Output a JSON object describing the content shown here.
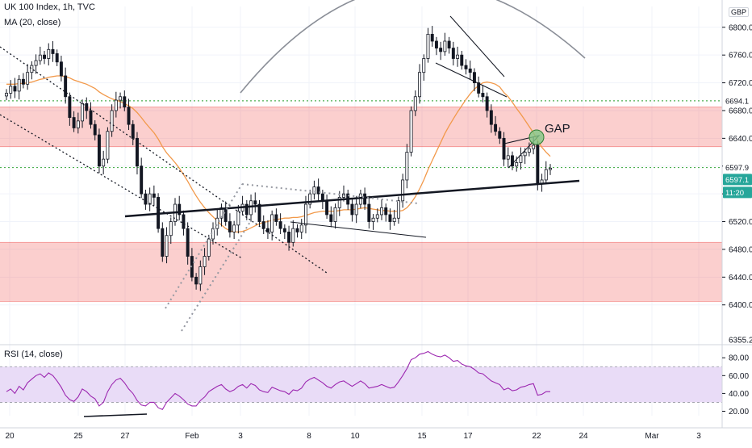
{
  "header": {
    "symbol_line": "UK 100 Index, 1h, TVC",
    "ma_line": "MA (20, close)",
    "rsi_line": "RSI (14, close)"
  },
  "currency_badge": "GBP",
  "annotation_gap": "GAP",
  "colors": {
    "up": "#26a69a",
    "down": "#ef5350",
    "candle_body": "#131722",
    "ma": "#f2994a",
    "rsi": "#9c27b0",
    "rsi_band": "#e9dcf7",
    "zone_fill": "rgba(239,83,80,0.28)",
    "zone_line": "#ef5350",
    "green_level": "#4caf50",
    "price_badge": "#26a69a",
    "time_badge": "#2962ff"
  },
  "chart_data": [
    {
      "type": "candlestick",
      "title": "UK 100 Index, 1h, TVC",
      "ylabel": "GBP",
      "ylim": [
        6345,
        6830
      ],
      "y_ticks": [
        6400,
        6440,
        6480,
        6520,
        6560,
        6600,
        6640,
        6680,
        6720,
        6760,
        6800
      ],
      "x_tick_labels": [
        "20",
        "25",
        "27",
        "Feb",
        "3",
        "8",
        "10",
        "15",
        "17",
        "22",
        "24",
        "Mar",
        "3"
      ],
      "price_labels": {
        "level_high": "6694.1",
        "level_mid": "6597.9",
        "last": "6597.1",
        "countdown": "11:20",
        "bottom": "6355.2"
      },
      "zones": [
        [
          6628,
          6685
        ],
        [
          6405,
          6490
        ]
      ],
      "levels": [
        6694.1,
        6597.9
      ],
      "close": [
        6705,
        6715,
        6708,
        6725,
        6718,
        6735,
        6745,
        6752,
        6760,
        6755,
        6768,
        6762,
        6750,
        6730,
        6700,
        6670,
        6655,
        6665,
        6690,
        6680,
        6660,
        6645,
        6600,
        6610,
        6650,
        6680,
        6695,
        6700,
        6685,
        6660,
        6640,
        6600,
        6560,
        6545,
        6560,
        6555,
        6510,
        6470,
        6500,
        6520,
        6545,
        6530,
        6510,
        6470,
        6440,
        6430,
        6455,
        6470,
        6495,
        6510,
        6525,
        6540,
        6520,
        6505,
        6515,
        6535,
        6545,
        6530,
        6550,
        6545,
        6520,
        6510,
        6505,
        6530,
        6520,
        6510,
        6505,
        6490,
        6510,
        6505,
        6515,
        6545,
        6560,
        6570,
        6560,
        6550,
        6530,
        6520,
        6540,
        6555,
        6560,
        6545,
        6530,
        6545,
        6560,
        6545,
        6520,
        6525,
        6530,
        6540,
        6530,
        6520,
        6525,
        6550,
        6580,
        6620,
        6680,
        6700,
        6735,
        6755,
        6790,
        6780,
        6770,
        6765,
        6780,
        6770,
        6755,
        6760,
        6745,
        6740,
        6735,
        6720,
        6705,
        6700,
        6680,
        6660,
        6650,
        6640,
        6610,
        6615,
        6600,
        6605,
        6615,
        6620,
        6625,
        6630,
        6575,
        6580,
        6595,
        6597
      ],
      "ma20": [
        6718,
        6718,
        6718,
        6719,
        6719,
        6720,
        6721,
        6723,
        6725,
        6726,
        6728,
        6729,
        6730,
        6730,
        6729,
        6727,
        6724,
        6722,
        6720,
        6718,
        6715,
        6712,
        6707,
        6703,
        6700,
        6697,
        6695,
        6693,
        6690,
        6687,
        6683,
        6677,
        6670,
        6662,
        6655,
        6648,
        6639,
        6628,
        6619,
        6612,
        6605,
        6597,
        6588,
        6578,
        6567,
        6557,
        6548,
        6540,
        6533,
        6527,
        6521,
        6515,
        6510,
        6507,
        6505,
        6505,
        6506,
        6508,
        6511,
        6514,
        6517,
        6519,
        6520,
        6522,
        6523,
        6524,
        6525,
        6525,
        6526,
        6526,
        6527,
        6529,
        6531,
        6533,
        6534,
        6535,
        6535,
        6535,
        6535,
        6536,
        6537,
        6537,
        6537,
        6538,
        6539,
        6540,
        6539,
        6538,
        6537,
        6536,
        6536,
        6535,
        6535,
        6535,
        6536,
        6540,
        6547,
        6556,
        6567,
        6580,
        6595,
        6608,
        6621,
        6634,
        6647,
        6658,
        6668,
        6678,
        6687,
        6696,
        6704,
        6711,
        6716,
        6720,
        6721,
        6720,
        6718,
        6714,
        6706,
        6700,
        6692,
        6683,
        6675,
        6666,
        6657,
        6648,
        6637,
        6627,
        6620,
        6614
      ],
      "rsi": {
        "ylim": [
          15,
          92
        ],
        "y_ticks": [
          20,
          40,
          60,
          80
        ],
        "bands": [
          30,
          70
        ],
        "values": [
          42,
          45,
          40,
          48,
          44,
          52,
          56,
          60,
          62,
          58,
          63,
          60,
          54,
          47,
          38,
          33,
          31,
          36,
          45,
          42,
          37,
          34,
          26,
          30,
          42,
          50,
          55,
          57,
          52,
          45,
          40,
          32,
          27,
          26,
          30,
          30,
          24,
          22,
          30,
          35,
          40,
          37,
          33,
          28,
          26,
          26,
          32,
          36,
          42,
          45,
          48,
          50,
          45,
          42,
          44,
          48,
          50,
          46,
          51,
          49,
          44,
          42,
          41,
          47,
          45,
          43,
          42,
          39,
          44,
          43,
          46,
          53,
          56,
          58,
          55,
          52,
          48,
          46,
          50,
          53,
          54,
          51,
          48,
          51,
          54,
          51,
          46,
          47,
          48,
          50,
          48,
          46,
          47,
          53,
          60,
          68,
          78,
          80,
          84,
          85,
          87,
          84,
          82,
          81,
          83,
          80,
          76,
          77,
          73,
          71,
          70,
          67,
          63,
          62,
          58,
          54,
          52,
          50,
          44,
          46,
          43,
          44,
          47,
          48,
          50,
          51,
          38,
          39,
          42,
          42
        ]
      }
    }
  ]
}
